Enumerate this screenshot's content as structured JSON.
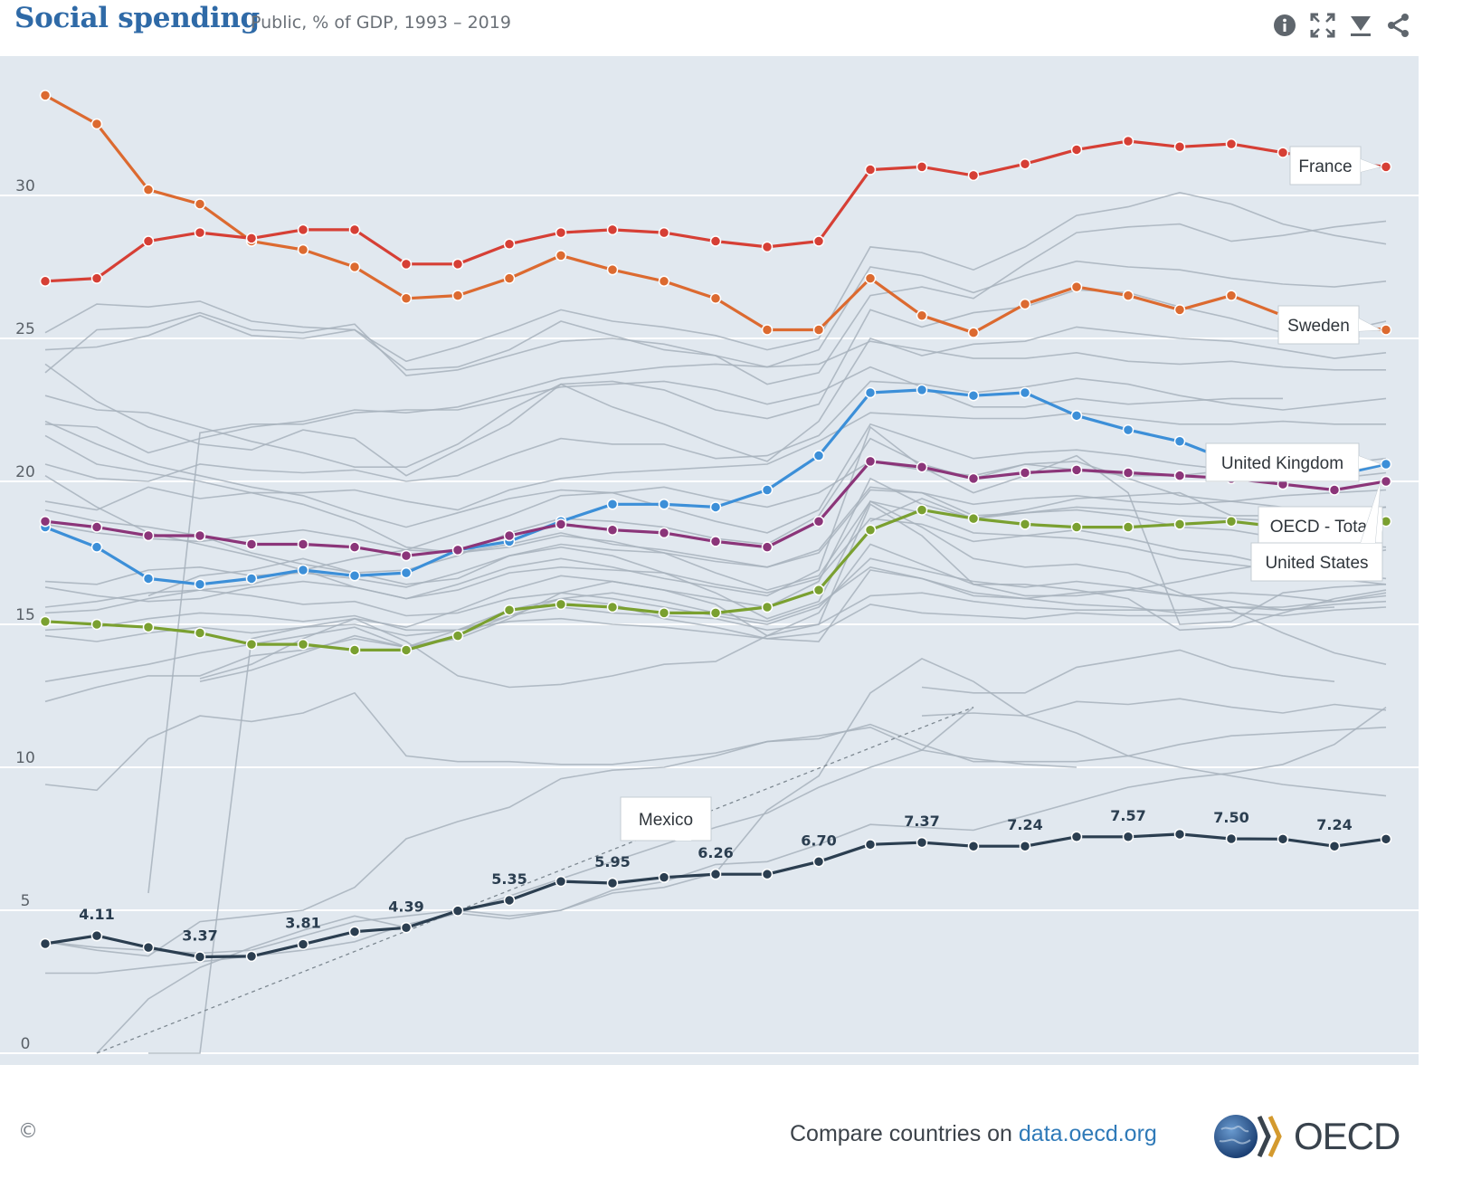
{
  "header": {
    "title": "Social spending",
    "subtitle": "Public, % of GDP, 1993 – 2019",
    "icons": [
      "info-icon",
      "fullscreen-icon",
      "download-icon",
      "share-icon"
    ]
  },
  "footer": {
    "copyright": "©",
    "compare_prefix": "Compare countries on ",
    "compare_link": "data.oecd.org",
    "logo_text": "OECD"
  },
  "chart_data": {
    "type": "line",
    "title": "Social spending",
    "subtitle": "Public, % of GDP, 1993 – 2019",
    "xlim": [
      1993,
      2019
    ],
    "ylim": [
      0,
      33.5
    ],
    "x_ticks": [
      1994,
      1996,
      1998,
      2000,
      2002,
      2004,
      2006,
      2008,
      2010,
      2012,
      2014,
      2016,
      2018
    ],
    "y_ticks": [
      0,
      5,
      10,
      15,
      20,
      25,
      30
    ],
    "grid": true,
    "colors": {
      "background": "#e1e8ef",
      "background_lines": "#a7b2bc",
      "France": "#d63f35",
      "Sweden": "#dc6a30",
      "United Kingdom": "#3c8fd8",
      "United States": "#8b3579",
      "OECD - Total": "#7aa030",
      "Mexico": "#2b3e50"
    },
    "years": [
      1993,
      1994,
      1995,
      1996,
      1997,
      1998,
      1999,
      2000,
      2001,
      2002,
      2003,
      2004,
      2005,
      2006,
      2007,
      2008,
      2009,
      2010,
      2011,
      2012,
      2013,
      2014,
      2015,
      2016,
      2017,
      2018,
      2019
    ],
    "series": [
      {
        "name": "France",
        "values": [
          27.0,
          27.1,
          28.4,
          28.7,
          28.5,
          28.8,
          28.8,
          27.6,
          27.6,
          28.3,
          28.7,
          28.8,
          28.7,
          28.4,
          28.2,
          28.4,
          30.9,
          31.0,
          30.7,
          31.1,
          31.6,
          31.9,
          31.7,
          31.8,
          31.5,
          31.2,
          31.0
        ]
      },
      {
        "name": "Sweden",
        "values": [
          33.5,
          32.5,
          30.2,
          29.7,
          28.4,
          28.1,
          27.5,
          26.4,
          26.5,
          27.1,
          27.9,
          27.4,
          27.0,
          26.4,
          25.3,
          25.3,
          27.1,
          25.8,
          25.2,
          26.2,
          26.8,
          26.5,
          26.0,
          26.5,
          25.8,
          25.5,
          25.3
        ]
      },
      {
        "name": "United Kingdom",
        "values": [
          18.4,
          17.7,
          16.6,
          16.4,
          16.6,
          16.9,
          16.7,
          16.8,
          17.6,
          17.9,
          18.6,
          19.2,
          19.2,
          19.1,
          19.7,
          20.9,
          23.1,
          23.2,
          23.0,
          23.1,
          22.3,
          21.8,
          21.4,
          20.7,
          20.4,
          20.2,
          20.6
        ]
      },
      {
        "name": "United States",
        "values": [
          18.6,
          18.4,
          18.1,
          18.1,
          17.8,
          17.8,
          17.7,
          17.4,
          17.6,
          18.1,
          18.5,
          18.3,
          18.2,
          17.9,
          17.7,
          18.6,
          20.7,
          20.5,
          20.1,
          20.3,
          20.4,
          20.3,
          20.2,
          20.1,
          19.9,
          19.7,
          20.0
        ]
      },
      {
        "name": "OECD - Total",
        "values": [
          15.1,
          15.0,
          14.9,
          14.7,
          14.3,
          14.3,
          14.1,
          14.1,
          14.6,
          15.5,
          15.7,
          15.6,
          15.4,
          15.4,
          15.6,
          16.2,
          18.3,
          19.0,
          18.7,
          18.5,
          18.4,
          18.4,
          18.5,
          18.6,
          18.4,
          18.2,
          18.6
        ]
      },
      {
        "name": "Mexico",
        "values": [
          3.83,
          4.11,
          3.7,
          3.37,
          3.39,
          3.81,
          4.25,
          4.39,
          4.98,
          5.35,
          6.01,
          5.95,
          6.15,
          6.26,
          6.26,
          6.7,
          7.3,
          7.37,
          7.24,
          7.24,
          7.57,
          7.57,
          7.66,
          7.5,
          7.49,
          7.24,
          7.49
        ]
      }
    ],
    "data_labels": {
      "Mexico": [
        {
          "year": 1994,
          "label": "4.11"
        },
        {
          "year": 1996,
          "label": "3.37"
        },
        {
          "year": 1998,
          "label": "3.81"
        },
        {
          "year": 2000,
          "label": "4.39"
        },
        {
          "year": 2002,
          "label": "5.35"
        },
        {
          "year": 2004,
          "label": "5.95"
        },
        {
          "year": 2006,
          "label": "6.26"
        },
        {
          "year": 2008,
          "label": "6.70"
        },
        {
          "year": 2010,
          "label": "7.37"
        },
        {
          "year": 2012,
          "label": "7.24"
        },
        {
          "year": 2014,
          "label": "7.57"
        },
        {
          "year": 2016,
          "label": "7.50"
        },
        {
          "year": 2018,
          "label": "7.24"
        }
      ]
    },
    "callouts": [
      "France",
      "Sweden",
      "United Kingdom",
      "OECD - Total",
      "United States",
      "Mexico"
    ],
    "background_series": [
      [
        25.2,
        26.2,
        26.1,
        26.3,
        25.6,
        25.4,
        25.3,
        24.2,
        24.7,
        25.3,
        26.0,
        25.6,
        25.4,
        25.1,
        24.6,
        25.0,
        28.2,
        28.0,
        27.4,
        28.2,
        29.3,
        29.6,
        30.1,
        29.7,
        29.0,
        28.6,
        28.3
      ],
      [
        24.6,
        24.7,
        25.1,
        25.8,
        25.1,
        25.0,
        25.3,
        23.9,
        24.0,
        24.6,
        25.6,
        25.1,
        24.6,
        24.4,
        24.0,
        24.6,
        27.5,
        27.2,
        26.6,
        27.2,
        27.7,
        27.5,
        27.4,
        27.1,
        26.9,
        26.8,
        27.0
      ],
      [
        23.8,
        25.3,
        25.4,
        25.9,
        25.3,
        25.2,
        25.5,
        23.7,
        23.9,
        24.4,
        24.9,
        25.0,
        24.8,
        24.4,
        23.4,
        23.8,
        26.5,
        26.8,
        26.4,
        27.6,
        28.7,
        28.9,
        29.0,
        28.4,
        28.6,
        28.9,
        29.1
      ],
      [
        24.1,
        22.8,
        21.9,
        21.3,
        21.1,
        21.8,
        21.5,
        20.2,
        21.1,
        22.0,
        23.4,
        22.6,
        22.0,
        21.3,
        20.7,
        22.1,
        25.0,
        24.4,
        24.8,
        24.9,
        25.4,
        25.2,
        25.0,
        24.9,
        24.6,
        24.3,
        24.5
      ],
      [
        23.0,
        22.5,
        22.4,
        21.9,
        21.4,
        21.0,
        20.5,
        20.5,
        21.3,
        22.5,
        23.4,
        23.5,
        23.2,
        22.5,
        22.2,
        22.7,
        26.0,
        25.4,
        25.9,
        26.1,
        26.7,
        26.6,
        26.1,
        25.7,
        25.2,
        25.2,
        25.6
      ],
      [
        22.0,
        21.9,
        21.0,
        21.5,
        21.9,
        22.1,
        22.5,
        22.4,
        22.6,
        23.1,
        23.6,
        23.8,
        24.0,
        24.1,
        24.0,
        24.1,
        24.9,
        24.6,
        24.3,
        24.3,
        24.5,
        24.2,
        24.1,
        24.2,
        24.0,
        23.9,
        23.9
      ],
      [
        19.3,
        19.0,
        19.8,
        19.4,
        19.6,
        19.6,
        19.7,
        19.3,
        19.0,
        19.7,
        20.1,
        20.3,
        20.4,
        20.5,
        20.6,
        21.4,
        22.4,
        22.3,
        22.2,
        22.2,
        22.4,
        22.2,
        22.0,
        22.0,
        22.1,
        22.0,
        22.0
      ],
      [
        20.6,
        20.1,
        20.0,
        20.6,
        20.4,
        20.3,
        20.4,
        20.0,
        20.2,
        20.9,
        21.5,
        21.3,
        21.3,
        20.8,
        20.9,
        21.6,
        23.5,
        23.4,
        23.1,
        23.3,
        23.6,
        23.4,
        23.0,
        22.7,
        22.5,
        22.7,
        22.9
      ],
      [
        18.5,
        18.2,
        18.0,
        17.9,
        18.1,
        18.3,
        18.0,
        17.6,
        17.5,
        17.8,
        18.2,
        17.8,
        17.6,
        17.3,
        17.0,
        17.5,
        19.7,
        19.6,
        19.2,
        19.4,
        19.5,
        19.3,
        19.2,
        19.3,
        19.5,
        19.6,
        19.7
      ],
      [
        16.5,
        16.4,
        16.9,
        17.0,
        16.7,
        16.8,
        16.6,
        16.3,
        16.8,
        17.4,
        17.8,
        17.6,
        17.5,
        17.2,
        17.0,
        17.6,
        19.8,
        19.6,
        18.8,
        18.9,
        19.1,
        19.0,
        18.8,
        18.7,
        18.6,
        18.5,
        18.7
      ],
      [
        16.3,
        16.0,
        15.8,
        15.9,
        16.3,
        16.5,
        16.3,
        15.9,
        16.2,
        16.8,
        17.0,
        16.9,
        16.8,
        16.4,
        16.1,
        16.6,
        18.7,
        18.5,
        17.9,
        18.1,
        18.3,
        18.0,
        17.6,
        17.4,
        17.0,
        16.8,
        16.6
      ],
      [
        15.6,
        15.8,
        16.1,
        16.2,
        16.0,
        15.7,
        15.8,
        15.3,
        15.4,
        15.9,
        16.1,
        15.9,
        15.6,
        15.3,
        15.0,
        15.6,
        17.3,
        16.9,
        16.5,
        16.3,
        16.5,
        16.3,
        16.0,
        16.1,
        16.0,
        15.8,
        16.1
      ],
      [
        14.6,
        14.4,
        14.7,
        14.9,
        14.7,
        14.9,
        15.0,
        14.6,
        14.8,
        15.1,
        15.2,
        15.0,
        14.9,
        14.7,
        14.5,
        14.7,
        15.7,
        15.4,
        15.3,
        15.2,
        15.4,
        15.3,
        15.3,
        15.4,
        15.3,
        15.5,
        15.6
      ],
      [
        22.1,
        21.3,
        20.6,
        20.2,
        19.8,
        19.5,
        18.9,
        18.4,
        18.9,
        19.4,
        19.7,
        19.6,
        19.1,
        18.6,
        18.2,
        19.0,
        22.0,
        21.4,
        20.8,
        21.0,
        21.1,
        20.9,
        20.6,
        20.4,
        20.2,
        20.1,
        20.3
      ],
      [
        12.3,
        12.8,
        13.2,
        13.2,
        13.9,
        14.1,
        14.5,
        14.2,
        14.6,
        15.3,
        15.9,
        16.1,
        15.8,
        15.4,
        15.1,
        15.7,
        17.0,
        16.6,
        16.1,
        15.9,
        15.7,
        15.6,
        15.4,
        15.6,
        15.5,
        15.7,
        15.8
      ],
      [
        9.4,
        9.2,
        11.0,
        11.8,
        11.6,
        11.9,
        12.6,
        10.4,
        10.2,
        10.2,
        10.1,
        10.1,
        10.3,
        10.5,
        10.9,
        11.0,
        11.5,
        10.8,
        10.2,
        10.2,
        10.2,
        10.4,
        10.8,
        11.1,
        11.2,
        11.3,
        11.4
      ],
      [
        null,
        null,
        null,
        13.1,
        13.6,
        14.5,
        15.2,
        14.4,
        13.2,
        12.8,
        12.9,
        13.2,
        13.6,
        13.7,
        14.6,
        15.4,
        17.8,
        17.1,
        16.4,
        16.4,
        16.2,
        15.9,
        14.8,
        14.9,
        15.4,
        15.9,
        16.2
      ],
      [
        20.2,
        19.1,
        18.2,
        17.8,
        17.4,
        16.9,
        16.3,
        15.9,
        16.4,
        17.0,
        17.3,
        17.0,
        16.6,
        16.3,
        16.0,
        16.9,
        21.9,
        20.5,
        19.6,
        20.2,
        20.9,
        19.6,
        15.0,
        15.1,
        16.1,
        16.3,
        16.4
      ],
      [
        13.0,
        13.3,
        13.6,
        14.0,
        14.3,
        14.6,
        14.9,
        14.2,
        14.8,
        15.5,
        15.9,
        15.7,
        15.2,
        14.9,
        14.5,
        14.4,
        16.9,
        16.6,
        16.0,
        15.9,
        16.1,
        16.2,
        16.5,
        16.9,
        17.2,
        17.3,
        17.6
      ],
      [
        14.8,
        14.9,
        15.2,
        15.4,
        15.3,
        15.1,
        15.3,
        14.8,
        14.8,
        15.3,
        15.6,
        15.4,
        15.3,
        15.2,
        14.8,
        15.0,
        16.0,
        16.1,
        15.8,
        15.6,
        15.5,
        15.5,
        15.5,
        15.6,
        15.6,
        15.8,
        16.0
      ],
      [
        null,
        null,
        16.0,
        16.7,
        16.9,
        17.3,
        16.8,
        16.9,
        17.4,
        18.2,
        18.7,
        18.6,
        18.4,
        18.0,
        17.8,
        18.8,
        21.5,
        20.6,
        20.1,
        20.6,
        20.7,
        20.1,
        19.5,
        19.3,
        19.1,
        19.0,
        19.1
      ],
      [
        null,
        null,
        null,
        null,
        null,
        null,
        null,
        null,
        null,
        null,
        null,
        null,
        null,
        null,
        null,
        null,
        null,
        12.8,
        12.6,
        12.6,
        13.5,
        13.8,
        14.1,
        13.5,
        13.2,
        13.0,
        null
      ],
      [
        null,
        null,
        null,
        null,
        null,
        null,
        null,
        null,
        null,
        null,
        null,
        null,
        null,
        null,
        null,
        null,
        null,
        11.8,
        11.9,
        11.8,
        12.3,
        12.2,
        12.4,
        12.1,
        11.9,
        12.2,
        12.0
      ],
      [
        2.8,
        2.8,
        3.0,
        3.2,
        3.4,
        3.6,
        3.9,
        4.5,
        4.9,
        4.7,
        5.0,
        5.7,
        6.0,
        6.6,
        6.7,
        7.3,
        8.0,
        7.9,
        7.8,
        8.3,
        8.8,
        9.3,
        9.6,
        9.8,
        10.1,
        10.8,
        12.1
      ],
      [
        3.9,
        3.6,
        3.4,
        4.6,
        4.8,
        5.0,
        5.8,
        7.5,
        8.1,
        8.6,
        9.6,
        9.9,
        10.0,
        10.4,
        10.9,
        11.1,
        11.4,
        10.6,
        10.3,
        10.1,
        10.0,
        null,
        null,
        null,
        null,
        null,
        null
      ],
      [
        3.9,
        3.7,
        3.6,
        3.5,
        3.6,
        4.1,
        4.6,
        4.8,
        5.0,
        4.8,
        5.0,
        5.6,
        5.8,
        6.3,
        8.5,
        9.7,
        12.6,
        13.8,
        13.0,
        11.8,
        11.2,
        10.4,
        10.0,
        9.7,
        9.4,
        9.2,
        9.0
      ],
      [
        null,
        null,
        5.6,
        21.7,
        22.0,
        22.0,
        22.4,
        22.5,
        22.5,
        22.9,
        23.3,
        23.4,
        23.5,
        23.2,
        22.7,
        23.1,
        24.0,
        23.3,
        22.6,
        22.6,
        22.9,
        22.7,
        22.8,
        22.9,
        22.9,
        null,
        null
      ],
      [
        null,
        null,
        null,
        13.0,
        13.4,
        14.0,
        14.6,
        14.2,
        14.5,
        15.2,
        16.1,
        16.5,
        16.2,
        15.7,
        14.6,
        15.0,
        19.2,
        18.1,
        16.4,
        16.0,
        16.0,
        16.2,
        16.0,
        15.8,
        15.5,
        15.6,
        null
      ],
      [
        null,
        null,
        0.0,
        0.0,
        14.5,
        14.9,
        15.2,
        14.9,
        15.5,
        16.2,
        16.7,
        16.5,
        16.2,
        15.9,
        15.6,
        16.5,
        20.1,
        19.2,
        18.7,
        18.9,
        19.0,
        18.8,
        18.4,
        18.3,
        18.0,
        17.8,
        17.7
      ],
      [
        19.0,
        18.6,
        18.4,
        18.1,
        17.5,
        17.1,
        16.8,
        16.4,
        16.6,
        17.4,
        17.7,
        17.4,
        16.8,
        16.1,
        15.2,
        15.8,
        19.3,
        18.4,
        17.3,
        17.0,
        17.1,
        16.8,
        16.1,
        15.5,
        14.7,
        14.0,
        13.6
      ],
      [
        21.6,
        20.6,
        20.3,
        20.0,
        19.6,
        19.2,
        18.6,
        17.7,
        17.5,
        17.7,
        18.1,
        17.9,
        17.5,
        16.8,
        16.2,
        16.7,
        19.3,
        18.9,
        18.2,
        18.1,
        18.0,
        17.7,
        17.3,
        17.1,
        16.9,
        16.6,
        16.4
      ],
      [
        15.4,
        15.5,
        15.9,
        16.2,
        16.4,
        16.9,
        17.3,
        17.6,
        18.2,
        18.8,
        19.5,
        19.6,
        19.8,
        19.4,
        19.1,
        19.6,
        20.7,
        20.4,
        20.2,
        20.6,
        20.4,
        20.2,
        20.2,
        20.4,
        20.5,
        20.6,
        20.8
      ],
      [
        null,
        null,
        null,
        null,
        null,
        null,
        null,
        null,
        null,
        null,
        null,
        null,
        null,
        null,
        null,
        null,
        18.6,
        19.4,
        18.7,
        19.0,
        19.4,
        19.5,
        19.6,
        18.8,
        18.8,
        18.9,
        19.1
      ],
      [
        null,
        0.0,
        1.9,
        3.0,
        3.7,
        4.3,
        4.8,
        4.4,
        4.9,
        5.5,
        6.1,
        6.7,
        7.3,
        7.9,
        8.4,
        9.3,
        10.0,
        10.6,
        12.1,
        null,
        null,
        null,
        null,
        null,
        null,
        null,
        null
      ]
    ]
  }
}
